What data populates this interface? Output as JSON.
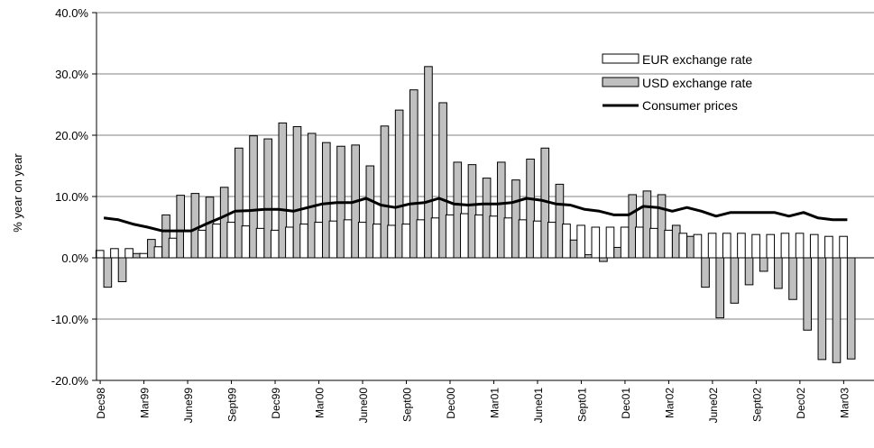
{
  "chart_data": {
    "type": "bar",
    "ylabel": "% year on year",
    "ylim": [
      -20,
      40
    ],
    "y_ticks": [
      "-20.0%",
      "-10.0%",
      "0.0%",
      "10.0%",
      "20.0%",
      "30.0%",
      "40.0%"
    ],
    "x_tick_labels": [
      "Dec98",
      "Mar99",
      "June99",
      "Sept99",
      "Dec99",
      "Mar00",
      "June00",
      "Sept00",
      "Dec00",
      "Mar01",
      "June01",
      "Sept01",
      "Dec01",
      "Mar02",
      "June02",
      "Sept02",
      "Dec02",
      "Mar03"
    ],
    "categories": [
      "Dec98",
      "Jan99",
      "Feb99",
      "Mar99",
      "Apr99",
      "May99",
      "June99",
      "Jul99",
      "Aug99",
      "Sept99",
      "Oct99",
      "Nov99",
      "Dec99",
      "Jan00",
      "Feb00",
      "Mar00",
      "Apr00",
      "May00",
      "June00",
      "Jul00",
      "Aug00",
      "Sept00",
      "Oct00",
      "Nov00",
      "Dec00",
      "Jan01",
      "Feb01",
      "Mar01",
      "Apr01",
      "May01",
      "June01",
      "Jul01",
      "Aug01",
      "Sept01",
      "Oct01",
      "Nov01",
      "Dec01",
      "Jan02",
      "Feb02",
      "Mar02",
      "Apr02",
      "May02",
      "June02",
      "Jul02",
      "Aug02",
      "Sept02",
      "Oct02",
      "Nov02",
      "Dec02",
      "Jan03",
      "Feb03",
      "Mar03"
    ],
    "legend": {
      "position": "top-right"
    },
    "series": [
      {
        "name": "EUR exchange rate",
        "kind": "bar",
        "fill": "#ffffff",
        "values": [
          1.2,
          1.5,
          1.5,
          0.7,
          1.8,
          3.2,
          4.5,
          4.5,
          5.5,
          5.8,
          5.2,
          4.8,
          4.5,
          5.0,
          5.5,
          5.8,
          6.0,
          6.2,
          5.8,
          5.5,
          5.3,
          5.5,
          6.2,
          6.5,
          7.0,
          7.2,
          7.0,
          6.8,
          6.5,
          6.2,
          6.0,
          5.8,
          5.5,
          5.3,
          5.0,
          5.0,
          5.0,
          5.0,
          4.8,
          4.5,
          4.0,
          3.8,
          4.0,
          4.0,
          4.0,
          3.8,
          3.8,
          4.0,
          4.0,
          3.8,
          3.5,
          3.5
        ]
      },
      {
        "name": "USD exchange rate",
        "kind": "bar",
        "fill": "#c0c0c0",
        "values": [
          -4.8,
          -3.9,
          0.7,
          3.0,
          7.0,
          10.2,
          10.5,
          9.9,
          11.5,
          17.9,
          19.9,
          19.4,
          22.0,
          21.4,
          20.3,
          18.8,
          18.2,
          18.4,
          15.0,
          21.5,
          24.1,
          27.4,
          31.2,
          25.3,
          15.6,
          15.2,
          13.0,
          15.6,
          12.7,
          16.1,
          17.9,
          12.0,
          2.9,
          0.5,
          -0.6,
          1.7,
          10.3,
          10.9,
          10.3,
          5.3,
          3.5,
          -4.8,
          -9.8,
          -7.4,
          -4.4,
          -2.2,
          -5.0,
          -6.8,
          -11.8,
          -16.6,
          -17.1,
          -16.5
        ]
      },
      {
        "name": "Consumer prices",
        "kind": "line",
        "color": "#000000",
        "values": [
          6.5,
          6.2,
          5.5,
          5.0,
          4.4,
          4.4,
          4.4,
          5.5,
          6.5,
          7.6,
          7.7,
          7.9,
          7.9,
          7.6,
          8.2,
          8.8,
          9.0,
          9.0,
          9.7,
          8.6,
          8.2,
          8.8,
          9.0,
          9.7,
          8.8,
          8.6,
          8.8,
          8.8,
          9.0,
          9.7,
          9.4,
          8.8,
          8.6,
          7.9,
          7.6,
          7.0,
          7.0,
          8.4,
          8.2,
          7.6,
          8.2,
          7.6,
          6.8,
          7.4,
          7.4,
          7.4,
          7.4,
          6.8,
          7.4,
          6.5,
          6.2,
          6.2
        ]
      }
    ]
  }
}
